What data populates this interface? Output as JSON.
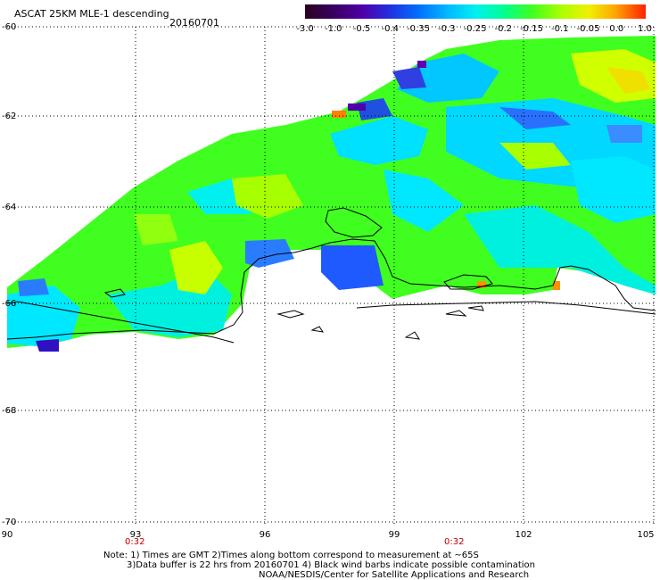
{
  "header": {
    "title": "ASCAT 25KM MLE-1 descending",
    "date": "20160701"
  },
  "colorbar": {
    "ticks": [
      "-3.0",
      "-1.0",
      "-0.5",
      "-0.4",
      "-0.35",
      "-0.3",
      "-0.25",
      "-0.2",
      "-0.15",
      "-0.1",
      "-0.05",
      "0.0",
      "1.0"
    ],
    "colors": [
      "#2a0020",
      "#3a0060",
      "#5000a8",
      "#2030e0",
      "#0070ff",
      "#00b8ff",
      "#00f0f0",
      "#00ff90",
      "#40ff20",
      "#a8ff00",
      "#f0f000",
      "#ffa000",
      "#ff2000"
    ]
  },
  "axes": {
    "y_labels": [
      "-60",
      "-62",
      "-64",
      "-66",
      "-68",
      "-70"
    ],
    "x_labels": [
      "90",
      "93",
      "96",
      "99",
      "102",
      "105"
    ]
  },
  "times": [
    "0:32",
    "0:32"
  ],
  "footer": {
    "note1": "Note: 1) Times are GMT 2)Times along bottom correspond to measurement at ~65S",
    "note2": "3)Data buffer is 22 hrs from 20160701 4) Black wind barbs indicate possible contamination",
    "credit": "NOAA/NESDIS/Center for Satellite Applications and Research"
  }
}
